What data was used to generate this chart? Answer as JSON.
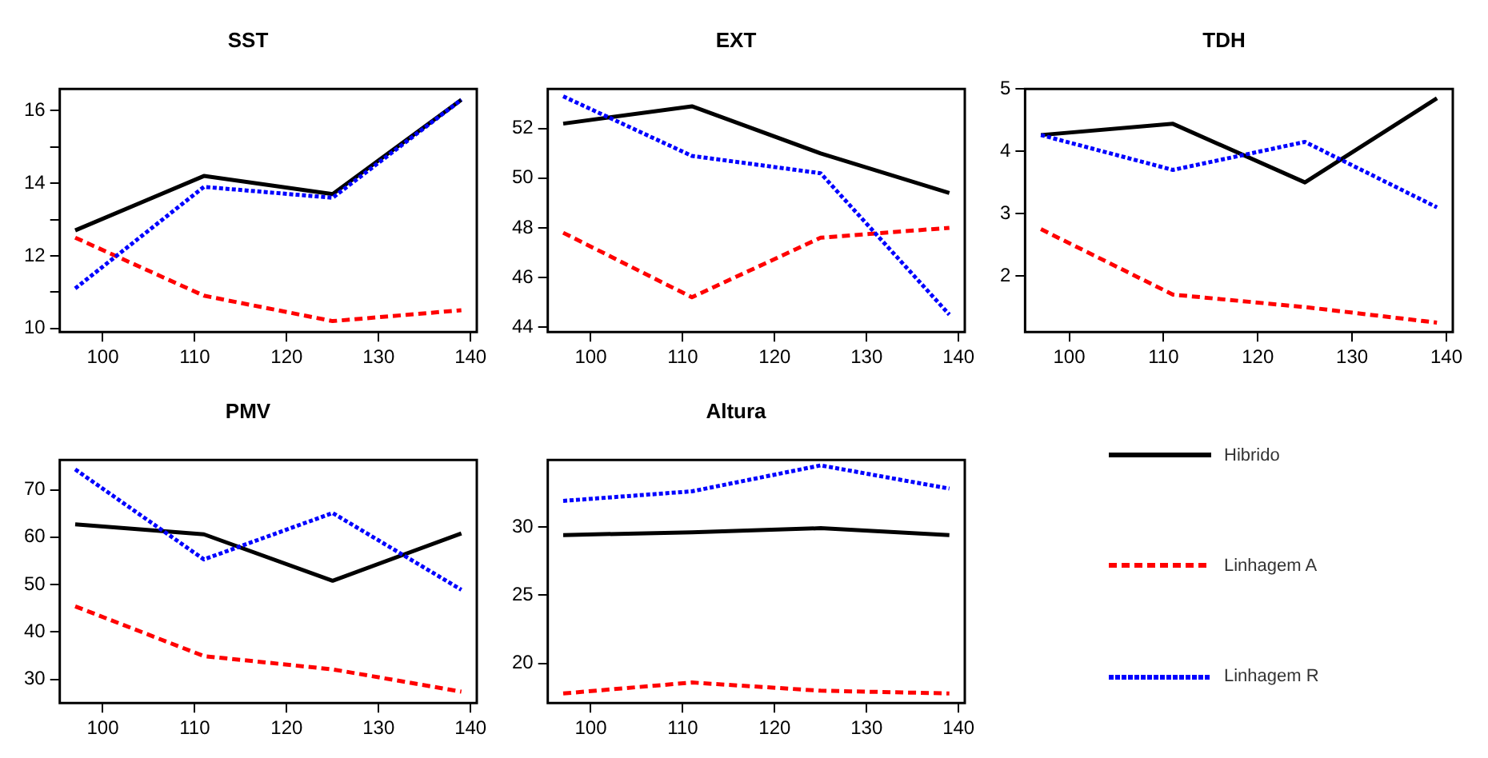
{
  "chart_data": [
    {
      "type": "line",
      "title": "SST",
      "x": [
        97,
        111,
        125,
        139
      ],
      "xlim": [
        95.32,
        140.68
      ],
      "xticks": [
        100,
        110,
        120,
        130,
        140
      ],
      "ylim": [
        9.9,
        16.6
      ],
      "yticks": [
        10,
        {
          "value": 11,
          "label": null
        },
        12,
        {
          "value": 13,
          "label": null
        },
        14,
        {
          "value": 15,
          "label": null
        },
        16
      ],
      "series": [
        {
          "color": "#000000",
          "line_style": "solid",
          "values": [
            12.7,
            14.2,
            13.7,
            16.3
          ]
        },
        {
          "color": "#ff0000",
          "line_style": "dashed",
          "values": [
            12.5,
            10.9,
            10.2,
            10.5
          ]
        },
        {
          "color": "#0000ff",
          "line_style": "dotted",
          "values": [
            11.1,
            13.9,
            13.6,
            16.3
          ]
        }
      ]
    },
    {
      "type": "line",
      "title": "EXT",
      "x": [
        97,
        111,
        125,
        139
      ],
      "xlim": [
        95.32,
        140.68
      ],
      "xticks": [
        100,
        110,
        120,
        130,
        140
      ],
      "ylim": [
        43.8,
        53.6
      ],
      "yticks": [
        44,
        46,
        48,
        50,
        52
      ],
      "series": [
        {
          "color": "#000000",
          "line_style": "solid",
          "values": [
            52.2,
            52.9,
            51.0,
            49.4
          ]
        },
        {
          "color": "#ff0000",
          "line_style": "dashed",
          "values": [
            47.8,
            45.2,
            47.6,
            48.0
          ]
        },
        {
          "color": "#0000ff",
          "line_style": "dotted",
          "values": [
            53.3,
            50.9,
            50.2,
            44.5
          ]
        }
      ]
    },
    {
      "type": "line",
      "title": "TDH",
      "x": [
        97,
        111,
        125,
        139
      ],
      "xlim": [
        95.32,
        140.68
      ],
      "xticks": [
        100,
        110,
        120,
        130,
        140
      ],
      "ylim": [
        1.1,
        5.0
      ],
      "yticks": [
        2,
        3,
        4,
        5
      ],
      "series": [
        {
          "color": "#000000",
          "line_style": "solid",
          "values": [
            4.26,
            4.44,
            3.5,
            4.85
          ]
        },
        {
          "color": "#ff0000",
          "line_style": "dashed",
          "values": [
            2.75,
            1.7,
            1.5,
            1.25
          ]
        },
        {
          "color": "#0000ff",
          "line_style": "dotted",
          "values": [
            4.26,
            3.7,
            4.15,
            3.1
          ]
        }
      ]
    },
    {
      "type": "line",
      "title": "PMV",
      "x": [
        97,
        111,
        125,
        139
      ],
      "xlim": [
        95.32,
        140.68
      ],
      "xticks": [
        100,
        110,
        120,
        130,
        140
      ],
      "ylim": [
        25,
        76.3
      ],
      "yticks": [
        30,
        40,
        50,
        60,
        70
      ],
      "series": [
        {
          "color": "#000000",
          "line_style": "solid",
          "values": [
            62.7,
            60.6,
            50.8,
            60.8
          ]
        },
        {
          "color": "#ff0000",
          "line_style": "dashed",
          "values": [
            45.4,
            34.9,
            32.1,
            27.4
          ]
        },
        {
          "color": "#0000ff",
          "line_style": "dotted",
          "values": [
            74.3,
            55.3,
            65.1,
            48.9
          ]
        }
      ]
    },
    {
      "type": "line",
      "title": "Altura",
      "x": [
        97,
        111,
        125,
        139
      ],
      "xlim": [
        95.32,
        140.68
      ],
      "xticks": [
        100,
        110,
        120,
        130,
        140
      ],
      "ylim": [
        17.1,
        34.9
      ],
      "yticks": [
        20,
        25,
        30
      ],
      "legend": "right",
      "series": [
        {
          "name": "Hibrido",
          "color": "#000000",
          "line_style": "solid",
          "values": [
            29.4,
            29.6,
            29.9,
            29.4
          ]
        },
        {
          "name": "Linhagem A",
          "color": "#ff0000",
          "line_style": "dashed",
          "values": [
            17.8,
            18.6,
            18.0,
            17.8
          ]
        },
        {
          "name": "Linhagem R",
          "color": "#0000ff",
          "line_style": "dotted",
          "values": [
            31.9,
            32.6,
            34.5,
            32.8
          ]
        }
      ]
    }
  ]
}
